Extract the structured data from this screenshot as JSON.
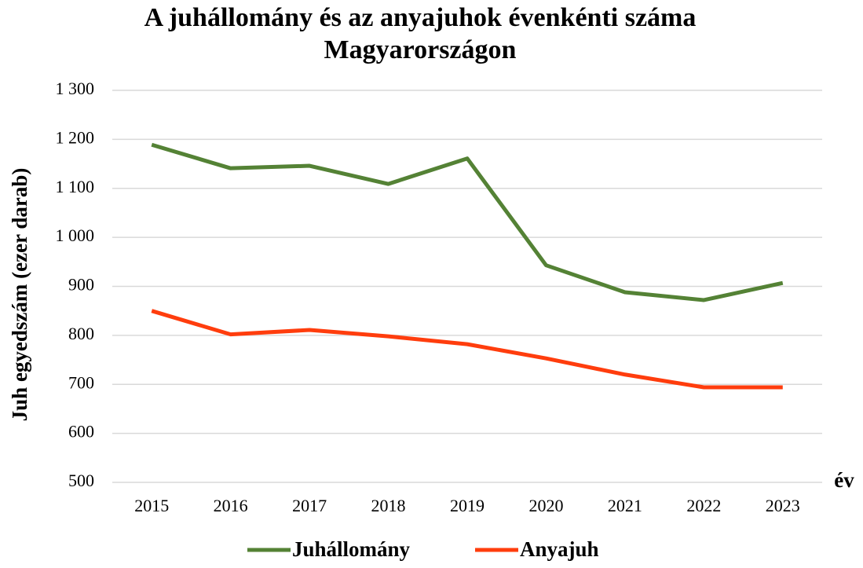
{
  "chart_data": {
    "type": "line",
    "title": "A juhállomány és az anyajuhok évenkénti száma Magyarországon",
    "y_label": "Juh egyedszám (ezer darab)",
    "x_label": "év",
    "categories": [
      "2015",
      "2016",
      "2017",
      "2018",
      "2019",
      "2020",
      "2021",
      "2022",
      "2023"
    ],
    "series": [
      {
        "name": "Juhállomány",
        "color": "#548235",
        "values": [
          1189,
          1141,
          1146,
          1109,
          1161,
          943,
          888,
          872,
          907
        ]
      },
      {
        "name": "Anyajuh",
        "color": "#ff3d0d",
        "values": [
          850,
          802,
          811,
          798,
          782,
          753,
          720,
          694,
          694
        ]
      }
    ],
    "ylim": [
      500,
      1300
    ],
    "yticks": [
      500,
      600,
      700,
      800,
      900,
      {
        "value": 1000,
        "label": "1 000"
      },
      {
        "value": 1100,
        "label": "1 100"
      },
      {
        "value": 1200,
        "label": "1 200"
      },
      {
        "value": 1300,
        "label": "1 300"
      }
    ],
    "grid": true,
    "legend": "bottom"
  }
}
